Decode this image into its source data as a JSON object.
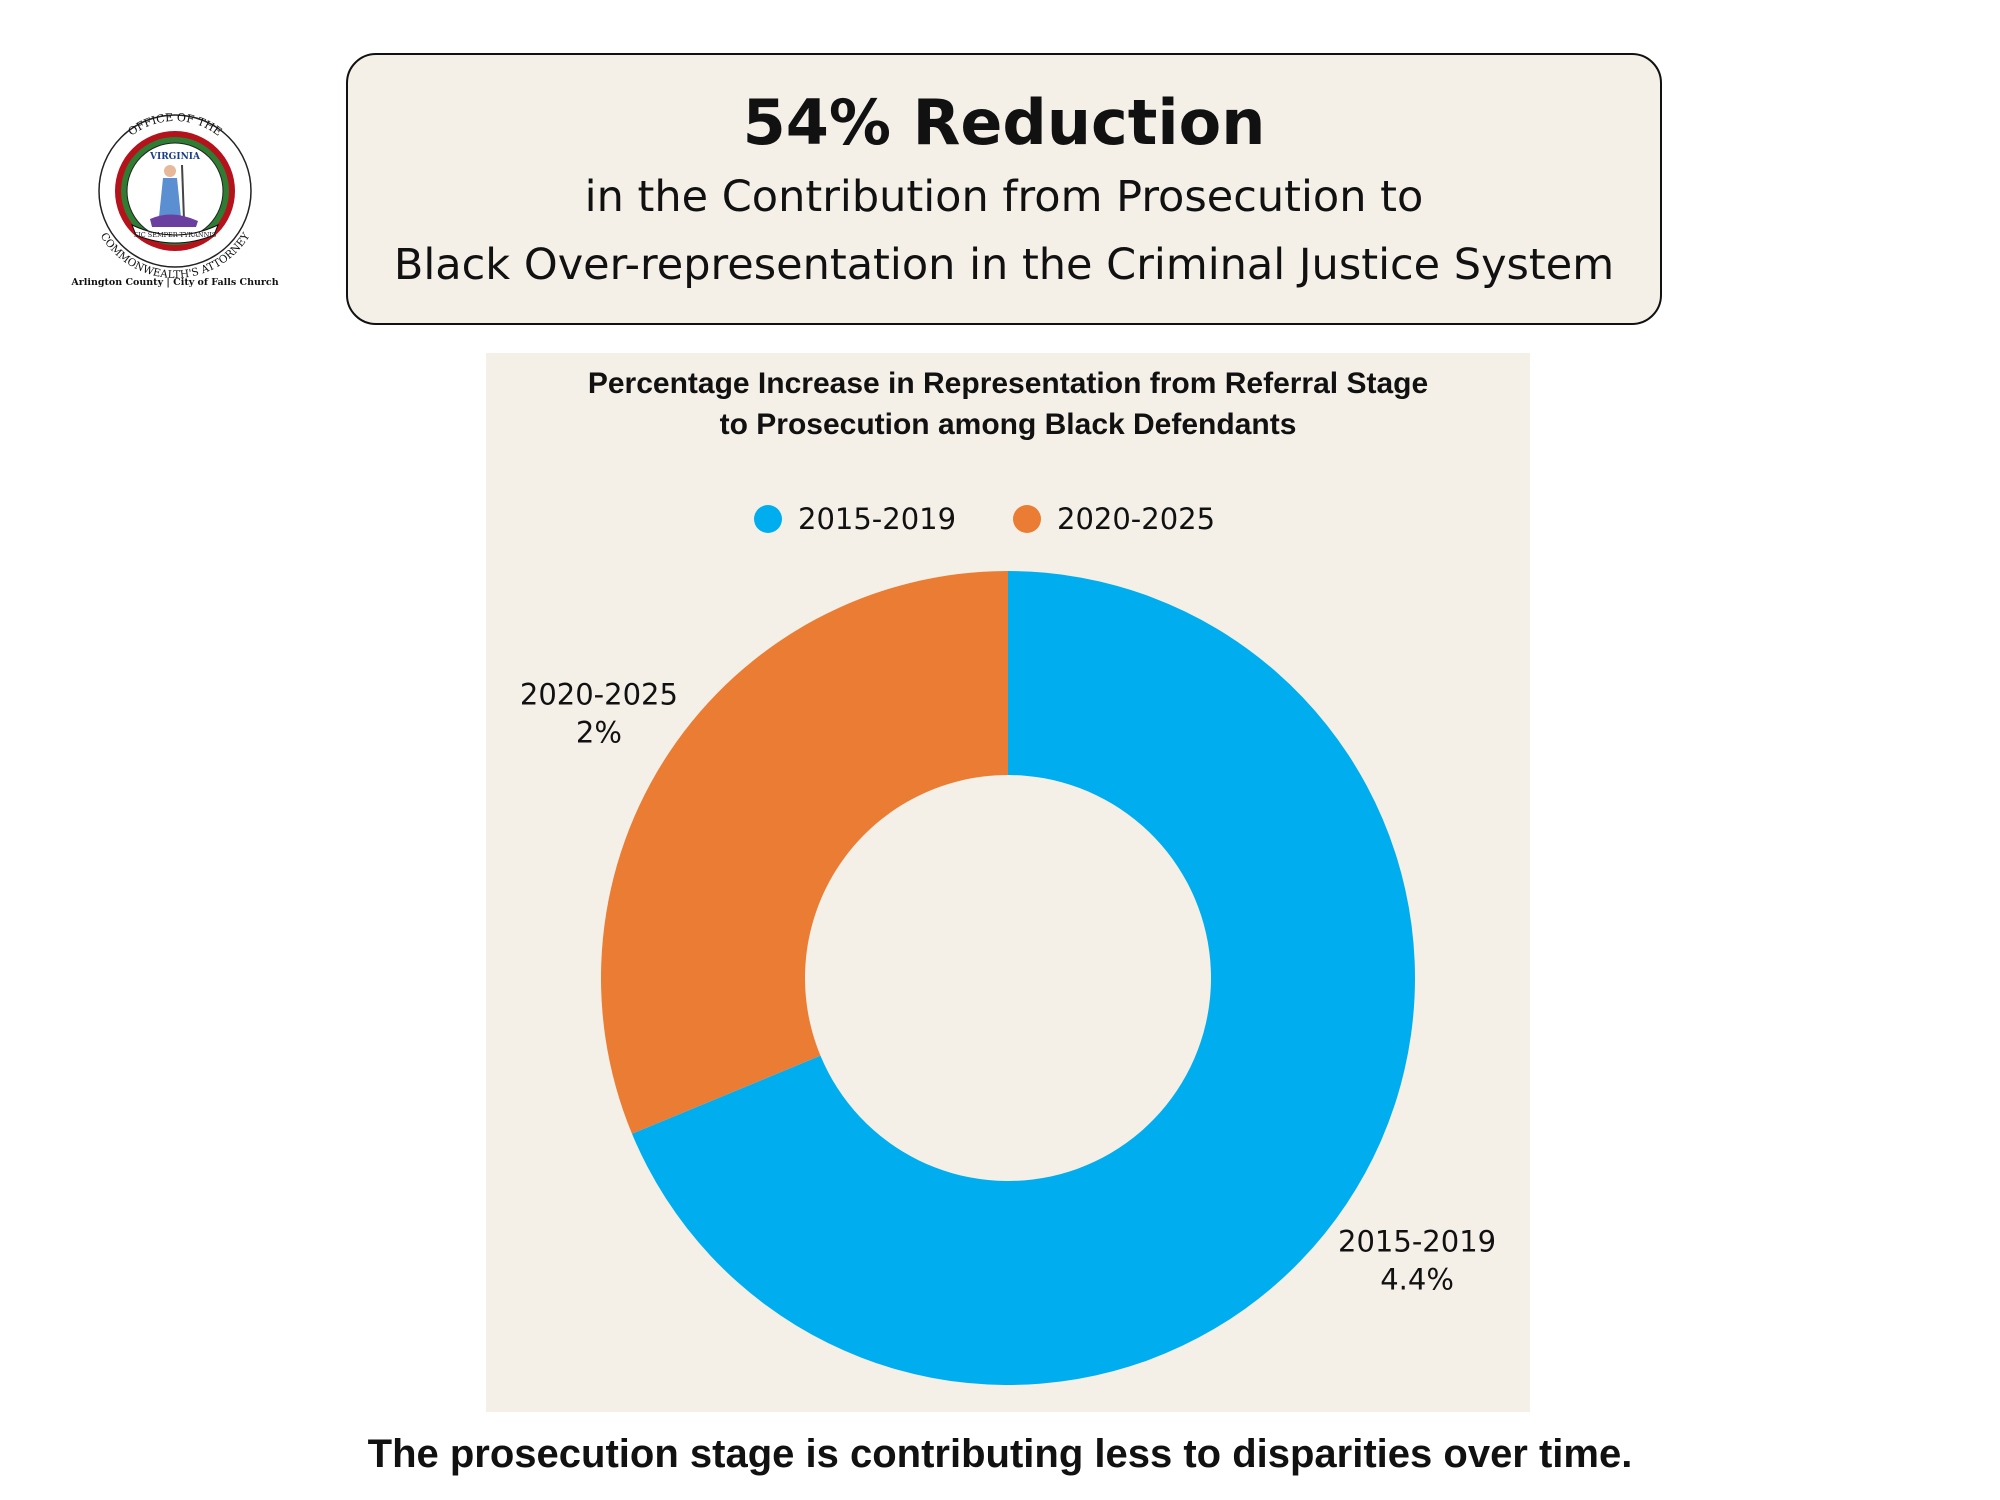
{
  "header": {
    "headline": "54% Reduction",
    "subline_1": "in the Contribution from Prosecution to",
    "subline_2": "Black Over-representation in the Criminal Justice System"
  },
  "seal": {
    "top_text": "OFFICE OF THE",
    "bottom_text": "COMMONWEALTH'S ATTORNEY",
    "inner_top": "VIRGINIA",
    "motto": "SIC SEMPER TYRANNIS",
    "caption": "Arlington County | City of Falls Church"
  },
  "chart_data": {
    "type": "pie",
    "variant": "donut",
    "title_line_1": "Percentage Increase in Representation from Referral Stage",
    "title_line_2": "to Prosecution among Black Defendants",
    "legend_position": "top",
    "series": [
      {
        "name": "2015-2019",
        "value": 4.4,
        "value_label": "4.4%",
        "color": "#00aeef"
      },
      {
        "name": "2020-2025",
        "value": 2,
        "value_label": "2%",
        "color": "#eb7c33"
      }
    ]
  },
  "footer": {
    "text": "The prosecution stage is contributing less to disparities over time."
  }
}
